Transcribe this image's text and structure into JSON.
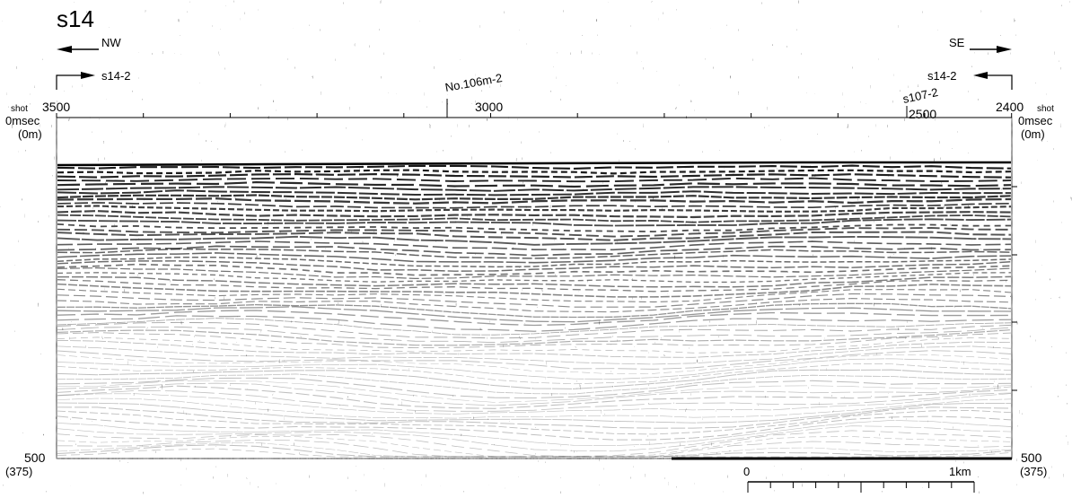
{
  "profile": {
    "title": "s14",
    "dir_left": "NW",
    "dir_right": "SE",
    "cross_left": "s14-2",
    "cross_right": "s14-2",
    "marker_1": "No.106m-2",
    "marker_2": "s107-2"
  },
  "axis": {
    "shot_word": "shot",
    "shot_left": "3500",
    "shot_mid": "3000",
    "shot_mark": "2500",
    "shot_right": "2400",
    "top_time": "0msec",
    "top_depth": "(0m)",
    "bottom_time": "500",
    "bottom_depth": "(375)"
  },
  "scale": {
    "zero": "0",
    "end": "1km"
  }
}
